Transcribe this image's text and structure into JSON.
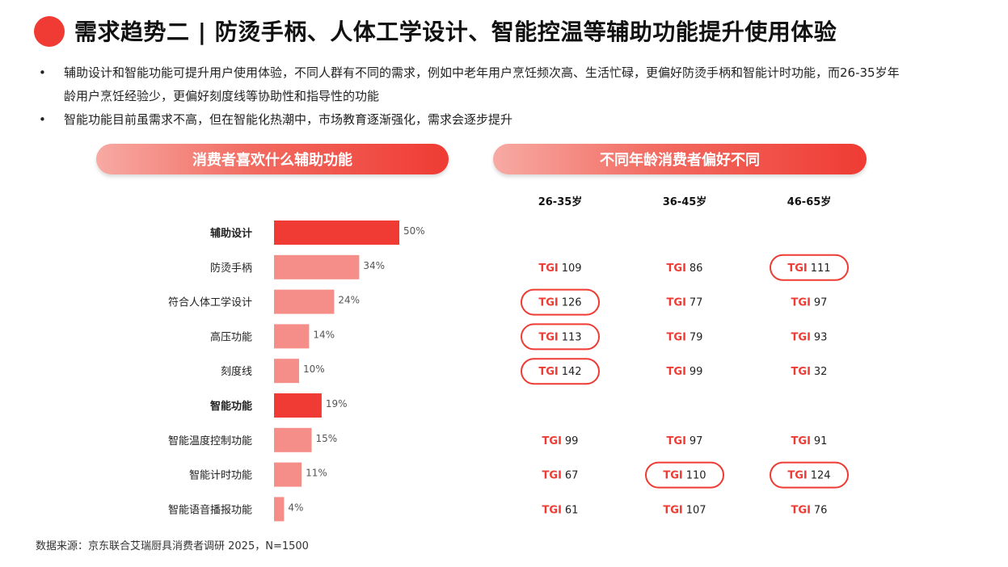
{
  "header": {
    "title": "需求趋势二 | 防烫手柄、人体工学设计、智能控温等辅助功能提升使用体验"
  },
  "bullets": [
    "辅助设计和智能功能可提升用户使用体验，不同人群有不同的需求，例如中老年用户烹饪频次高、生活忙碌，更偏好防烫手柄和智能计时功能，而26-35岁年龄用户烹饪经验少，更偏好刻度线等协助性和指导性的功能",
    "智能功能目前虽需求不高，但在智能化热潮中，市场教育逐渐强化，需求会逐步提升"
  ],
  "panels": {
    "left_title": "消费者喜欢什么辅助功能",
    "right_title": "不同年龄消费者偏好不同"
  },
  "colors": {
    "accent": "#ef3b33",
    "category_bar": "#ef3b33",
    "item_bar": "#f58e88"
  },
  "chart_data": [
    {
      "type": "bar",
      "orientation": "horizontal",
      "categories": [
        "辅助设计",
        "防烫手柄",
        "符合人体工学设计",
        "高压功能",
        "刻度线",
        "智能功能",
        "智能温度控制功能",
        "智能计时功能",
        "智能语音播报功能"
      ],
      "values": [
        50,
        34,
        24,
        14,
        10,
        19,
        15,
        11,
        4
      ],
      "value_labels": [
        "50%",
        "34%",
        "24%",
        "14%",
        "10%",
        "19%",
        "15%",
        "11%",
        "4%"
      ],
      "group_headers": [
        true,
        false,
        false,
        false,
        false,
        true,
        false,
        false,
        false
      ],
      "xlim": [
        0,
        100
      ],
      "grid": false
    },
    {
      "type": "table",
      "prefix": "TGI",
      "columns": [
        "26-35岁",
        "36-45岁",
        "46-65岁"
      ],
      "rows": [
        {
          "category": "辅助设计",
          "values": null
        },
        {
          "category": "防烫手柄",
          "values": [
            109,
            86,
            111
          ],
          "highlight": [
            false,
            false,
            true
          ]
        },
        {
          "category": "符合人体工学设计",
          "values": [
            126,
            77,
            97
          ],
          "highlight": [
            true,
            false,
            false
          ]
        },
        {
          "category": "高压功能",
          "values": [
            113,
            79,
            93
          ],
          "highlight": [
            true,
            false,
            false
          ]
        },
        {
          "category": "刻度线",
          "values": [
            142,
            99,
            32
          ],
          "highlight": [
            true,
            false,
            false
          ]
        },
        {
          "category": "智能功能",
          "values": null
        },
        {
          "category": "智能温度控制功能",
          "values": [
            99,
            97,
            91
          ],
          "highlight": [
            false,
            false,
            false
          ]
        },
        {
          "category": "智能计时功能",
          "values": [
            67,
            110,
            124
          ],
          "highlight": [
            false,
            true,
            true
          ]
        },
        {
          "category": "智能语音播报功能",
          "values": [
            61,
            107,
            76
          ],
          "highlight": [
            false,
            false,
            false
          ]
        }
      ]
    }
  ],
  "footer": {
    "source": "数据来源：京东联合艾瑞厨具消费者调研 2025，N=1500"
  }
}
